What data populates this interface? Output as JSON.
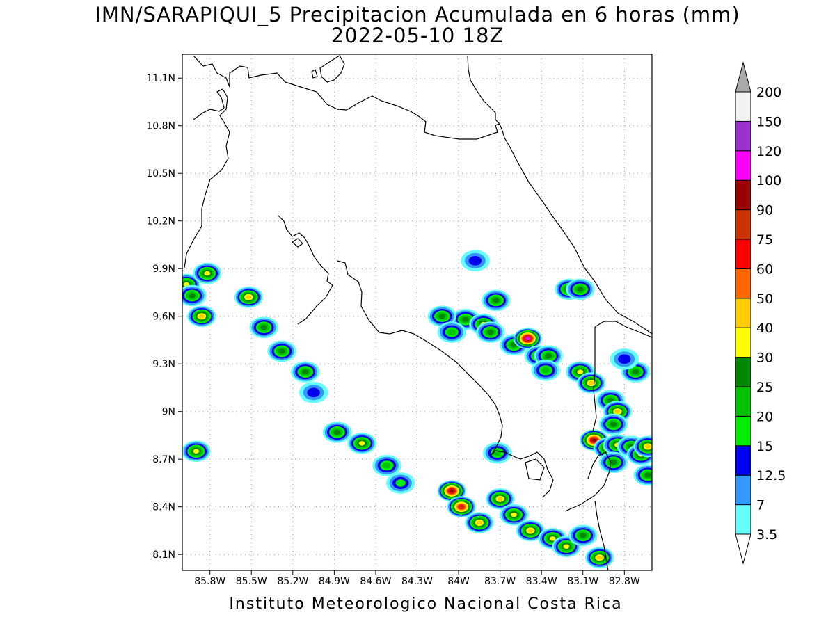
{
  "title": {
    "line1": "IMN/SARAPIQUI_5 Precipitacion Acumulada en 6 horas (mm)",
    "line2": "2022-05-10 18Z"
  },
  "footer": "Instituto Meteorologico Nacional Costa Rica",
  "map": {
    "lon_range": [
      -86.0,
      -82.6
    ],
    "lat_range": [
      8.0,
      11.25
    ],
    "lat_ticks": [
      "8.1N",
      "8.4N",
      "8.7N",
      "9N",
      "9.3N",
      "9.6N",
      "9.9N",
      "10.2N",
      "10.5N",
      "10.8N",
      "11.1N"
    ],
    "lon_ticks": [
      "85.8W",
      "85.5W",
      "85.2W",
      "84.9W",
      "84.6W",
      "84.3W",
      "84W",
      "83.7W",
      "83.4W",
      "83.1W",
      "82.8W"
    ],
    "gridlines": "dotted",
    "coastline_color": "#000000"
  },
  "legend": {
    "position": "right",
    "labels": [
      "3.5",
      "7",
      "12.5",
      "15",
      "20",
      "25",
      "30",
      "40",
      "50",
      "60",
      "75",
      "90",
      "100",
      "120",
      "150",
      "200"
    ],
    "colors": [
      "#66ffff",
      "#3399ff",
      "#0000ee",
      "#00ee00",
      "#00c400",
      "#008800",
      "#ffff00",
      "#ffcc00",
      "#ff6600",
      "#ff0000",
      "#cc3300",
      "#990000",
      "#ff00ff",
      "#9933cc",
      "#f2f2f2",
      "#aaaaaa"
    ]
  },
  "precip_cells": [
    {
      "lon": -85.97,
      "lat": 9.8,
      "v": 30
    },
    {
      "lon": -85.82,
      "lat": 9.87,
      "v": 30
    },
    {
      "lon": -85.93,
      "lat": 9.73,
      "v": 25
    },
    {
      "lon": -85.86,
      "lat": 9.6,
      "v": 40
    },
    {
      "lon": -85.52,
      "lat": 9.72,
      "v": 40
    },
    {
      "lon": -85.41,
      "lat": 9.53,
      "v": 25
    },
    {
      "lon": -85.28,
      "lat": 9.38,
      "v": 25
    },
    {
      "lon": -85.11,
      "lat": 9.25,
      "v": 25
    },
    {
      "lon": -85.05,
      "lat": 9.12,
      "v": 12.5
    },
    {
      "lon": -85.9,
      "lat": 8.75,
      "v": 30
    },
    {
      "lon": -84.88,
      "lat": 8.87,
      "v": 25
    },
    {
      "lon": -84.7,
      "lat": 8.8,
      "v": 30
    },
    {
      "lon": -84.52,
      "lat": 8.66,
      "v": 20
    },
    {
      "lon": -84.42,
      "lat": 8.55,
      "v": 15
    },
    {
      "lon": -84.05,
      "lat": 8.5,
      "v": 90
    },
    {
      "lon": -83.98,
      "lat": 8.4,
      "v": 75
    },
    {
      "lon": -83.85,
      "lat": 8.3,
      "v": 40
    },
    {
      "lon": -83.7,
      "lat": 8.45,
      "v": 40
    },
    {
      "lon": -83.6,
      "lat": 8.35,
      "v": 30
    },
    {
      "lon": -83.48,
      "lat": 8.25,
      "v": 40
    },
    {
      "lon": -83.32,
      "lat": 8.2,
      "v": 30
    },
    {
      "lon": -83.22,
      "lat": 8.15,
      "v": 30
    },
    {
      "lon": -83.1,
      "lat": 8.22,
      "v": 25
    },
    {
      "lon": -82.98,
      "lat": 8.08,
      "v": 40
    },
    {
      "lon": -83.72,
      "lat": 8.74,
      "v": 20
    },
    {
      "lon": -83.88,
      "lat": 9.95,
      "v": 12.5
    },
    {
      "lon": -83.73,
      "lat": 9.7,
      "v": 25
    },
    {
      "lon": -83.95,
      "lat": 9.58,
      "v": 25
    },
    {
      "lon": -84.12,
      "lat": 9.6,
      "v": 25
    },
    {
      "lon": -84.05,
      "lat": 9.5,
      "v": 20
    },
    {
      "lon": -83.82,
      "lat": 9.55,
      "v": 30
    },
    {
      "lon": -83.77,
      "lat": 9.5,
      "v": 25
    },
    {
      "lon": -83.6,
      "lat": 9.42,
      "v": 25
    },
    {
      "lon": -83.5,
      "lat": 9.46,
      "v": 100
    },
    {
      "lon": -83.42,
      "lat": 9.35,
      "v": 25
    },
    {
      "lon": -83.35,
      "lat": 9.35,
      "v": 25
    },
    {
      "lon": -83.37,
      "lat": 9.26,
      "v": 20
    },
    {
      "lon": -83.2,
      "lat": 9.77,
      "v": 30
    },
    {
      "lon": -83.12,
      "lat": 9.77,
      "v": 25
    },
    {
      "lon": -83.12,
      "lat": 9.25,
      "v": 30
    },
    {
      "lon": -83.04,
      "lat": 9.18,
      "v": 40
    },
    {
      "lon": -82.9,
      "lat": 9.07,
      "v": 25
    },
    {
      "lon": -82.85,
      "lat": 9.0,
      "v": 40
    },
    {
      "lon": -82.88,
      "lat": 8.92,
      "v": 25
    },
    {
      "lon": -83.02,
      "lat": 8.82,
      "v": 90
    },
    {
      "lon": -82.92,
      "lat": 8.77,
      "v": 40
    },
    {
      "lon": -82.85,
      "lat": 8.79,
      "v": 30
    },
    {
      "lon": -82.88,
      "lat": 8.68,
      "v": 25
    },
    {
      "lon": -82.75,
      "lat": 8.78,
      "v": 25
    },
    {
      "lon": -82.68,
      "lat": 8.73,
      "v": 30
    },
    {
      "lon": -82.63,
      "lat": 8.78,
      "v": 40
    },
    {
      "lon": -82.63,
      "lat": 8.6,
      "v": 25
    },
    {
      "lon": -82.72,
      "lat": 9.25,
      "v": 25
    },
    {
      "lon": -82.8,
      "lat": 9.33,
      "v": 12.5
    }
  ]
}
